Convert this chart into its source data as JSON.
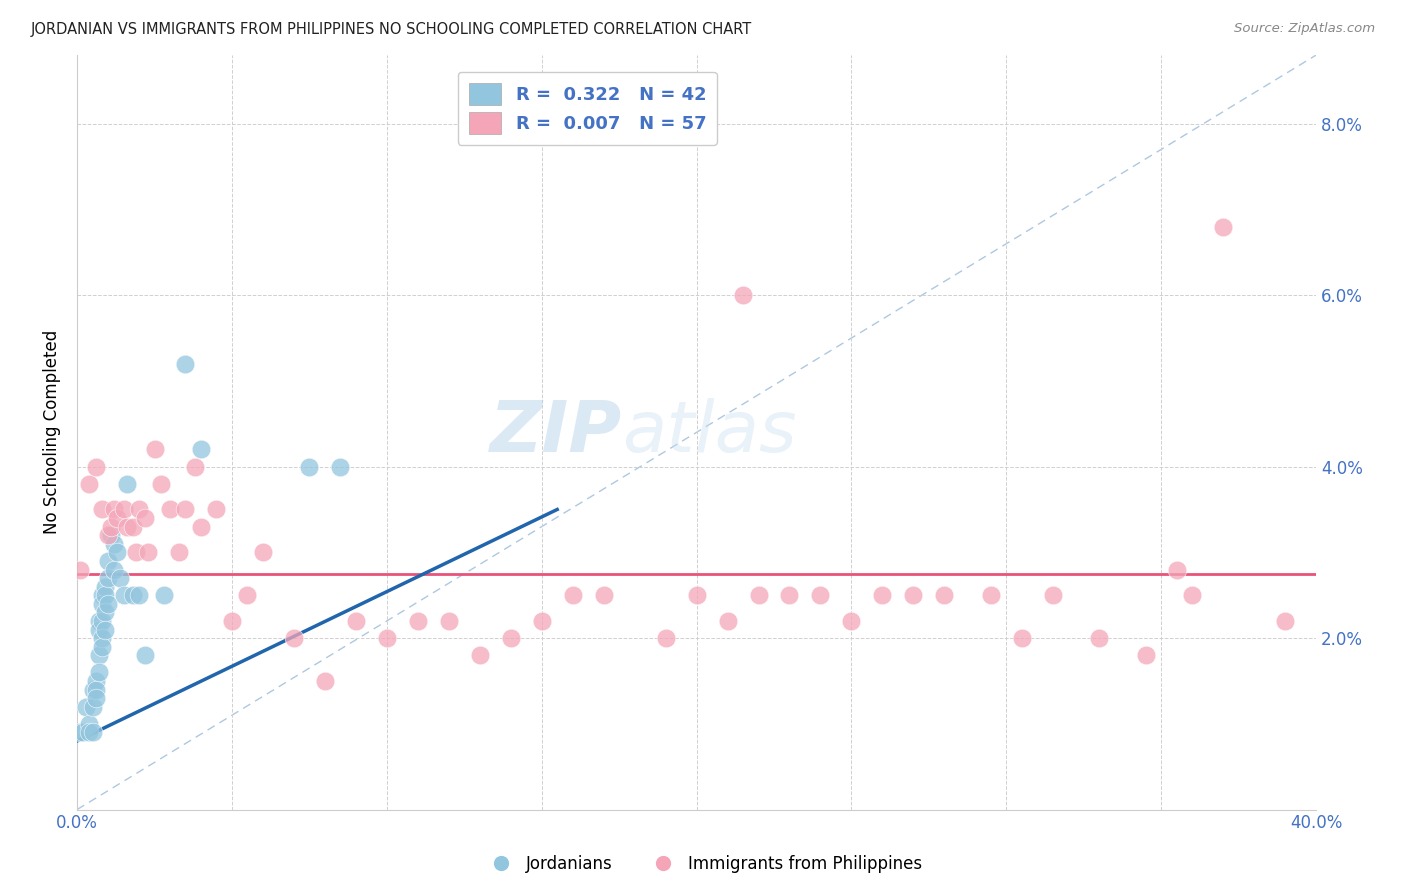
{
  "title": "JORDANIAN VS IMMIGRANTS FROM PHILIPPINES NO SCHOOLING COMPLETED CORRELATION CHART",
  "source": "Source: ZipAtlas.com",
  "ylabel": "No Schooling Completed",
  "xlim": [
    0.0,
    0.4
  ],
  "ylim": [
    0.0,
    0.088
  ],
  "xticks": [
    0.0,
    0.05,
    0.1,
    0.15,
    0.2,
    0.25,
    0.3,
    0.35,
    0.4
  ],
  "yticks": [
    0.0,
    0.02,
    0.04,
    0.06,
    0.08
  ],
  "blue_R": 0.322,
  "blue_N": 42,
  "pink_R": 0.007,
  "pink_N": 57,
  "blue_color": "#92c5de",
  "pink_color": "#f4a6b8",
  "blue_line_color": "#2166ac",
  "pink_line_color": "#e8537a",
  "watermark_zip": "ZIP",
  "watermark_atlas": "atlas",
  "blue_points_x": [
    0.001,
    0.002,
    0.003,
    0.004,
    0.004,
    0.005,
    0.005,
    0.005,
    0.006,
    0.006,
    0.006,
    0.007,
    0.007,
    0.007,
    0.007,
    0.008,
    0.008,
    0.008,
    0.008,
    0.008,
    0.009,
    0.009,
    0.009,
    0.009,
    0.01,
    0.01,
    0.01,
    0.011,
    0.012,
    0.012,
    0.013,
    0.014,
    0.015,
    0.016,
    0.018,
    0.02,
    0.022,
    0.028,
    0.035,
    0.04,
    0.075,
    0.085
  ],
  "blue_points_y": [
    0.009,
    0.009,
    0.012,
    0.01,
    0.009,
    0.014,
    0.012,
    0.009,
    0.015,
    0.014,
    0.013,
    0.022,
    0.021,
    0.018,
    0.016,
    0.025,
    0.024,
    0.022,
    0.02,
    0.019,
    0.026,
    0.025,
    0.023,
    0.021,
    0.029,
    0.027,
    0.024,
    0.032,
    0.031,
    0.028,
    0.03,
    0.027,
    0.025,
    0.038,
    0.025,
    0.025,
    0.018,
    0.025,
    0.052,
    0.042,
    0.04,
    0.04
  ],
  "pink_points_x": [
    0.001,
    0.004,
    0.006,
    0.008,
    0.01,
    0.011,
    0.012,
    0.013,
    0.015,
    0.016,
    0.018,
    0.019,
    0.02,
    0.022,
    0.023,
    0.025,
    0.027,
    0.03,
    0.033,
    0.035,
    0.038,
    0.04,
    0.045,
    0.05,
    0.055,
    0.06,
    0.07,
    0.08,
    0.09,
    0.1,
    0.11,
    0.12,
    0.13,
    0.14,
    0.15,
    0.16,
    0.17,
    0.19,
    0.2,
    0.21,
    0.215,
    0.22,
    0.23,
    0.24,
    0.25,
    0.26,
    0.27,
    0.28,
    0.295,
    0.305,
    0.315,
    0.33,
    0.345,
    0.355,
    0.36,
    0.37,
    0.39
  ],
  "pink_points_y": [
    0.028,
    0.038,
    0.04,
    0.035,
    0.032,
    0.033,
    0.035,
    0.034,
    0.035,
    0.033,
    0.033,
    0.03,
    0.035,
    0.034,
    0.03,
    0.042,
    0.038,
    0.035,
    0.03,
    0.035,
    0.04,
    0.033,
    0.035,
    0.022,
    0.025,
    0.03,
    0.02,
    0.015,
    0.022,
    0.02,
    0.022,
    0.022,
    0.018,
    0.02,
    0.022,
    0.025,
    0.025,
    0.02,
    0.025,
    0.022,
    0.06,
    0.025,
    0.025,
    0.025,
    0.022,
    0.025,
    0.025,
    0.025,
    0.025,
    0.02,
    0.025,
    0.02,
    0.018,
    0.028,
    0.025,
    0.068,
    0.022
  ],
  "blue_trend_x": [
    0.0,
    0.155
  ],
  "blue_trend_y": [
    0.008,
    0.035
  ],
  "pink_trend_y": 0.0275,
  "dashed_line_x": [
    0.0,
    0.4
  ],
  "dashed_line_y": [
    0.0,
    0.088
  ]
}
